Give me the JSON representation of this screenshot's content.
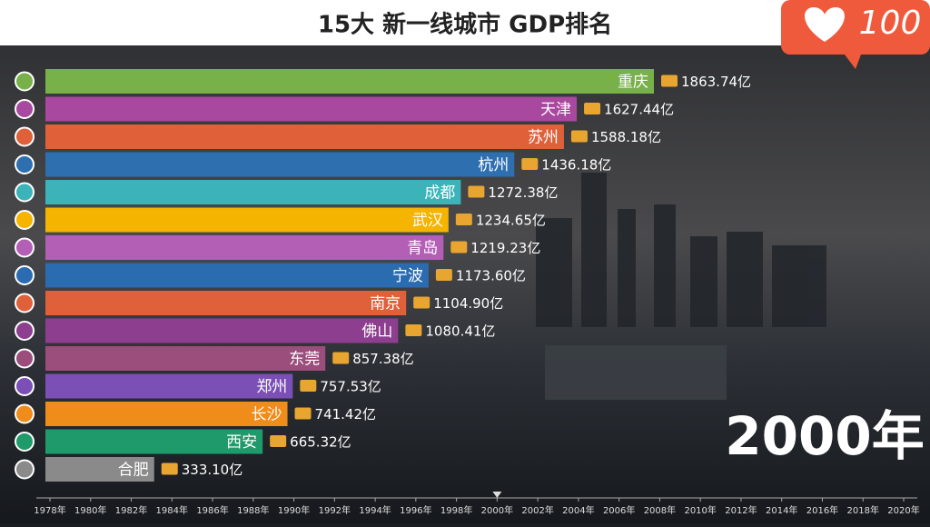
{
  "chart_data": {
    "type": "bar",
    "orientation": "horizontal",
    "title": "15大 新一线城市 GDP排名",
    "categories": [
      "重庆",
      "天津",
      "苏州",
      "杭州",
      "成都",
      "武汉",
      "青岛",
      "宁波",
      "南京",
      "佛山",
      "东莞",
      "郑州",
      "长沙",
      "西安",
      "合肥"
    ],
    "values": [
      1863.74,
      1627.44,
      1588.18,
      1436.18,
      1272.38,
      1234.65,
      1219.23,
      1173.6,
      1104.9,
      1080.41,
      857.38,
      757.53,
      741.42,
      665.32,
      333.1
    ],
    "value_labels": [
      "1863.74亿",
      "1627.44亿",
      "1588.18亿",
      "1436.18亿",
      "1272.38亿",
      "1234.65亿",
      "1219.23亿",
      "1173.60亿",
      "1104.90亿",
      "1080.41亿",
      "857.38亿",
      "757.53亿",
      "741.42亿",
      "665.32亿",
      "333.10亿"
    ],
    "colors": [
      "#78b04a",
      "#a8489e",
      "#e0603a",
      "#2e6fb0",
      "#3bb3b8",
      "#f5b400",
      "#b35fb5",
      "#2b6cb0",
      "#e0603a",
      "#8e3e8e",
      "#9b4d7c",
      "#7b4fb5",
      "#f08c1a",
      "#1f9a6a",
      "#8a8a8a"
    ]
  },
  "timeline": {
    "labels": [
      "1978年",
      "1980年",
      "1982年",
      "1984年",
      "1986年",
      "1988年",
      "1990年",
      "1992年",
      "1994年",
      "1996年",
      "1998年",
      "2000年",
      "2002年",
      "2004年",
      "2006年",
      "2008年",
      "2010年",
      "2012年",
      "2014年",
      "2016年",
      "2018年",
      "2020年"
    ],
    "current": "2000年"
  },
  "badge": "100"
}
